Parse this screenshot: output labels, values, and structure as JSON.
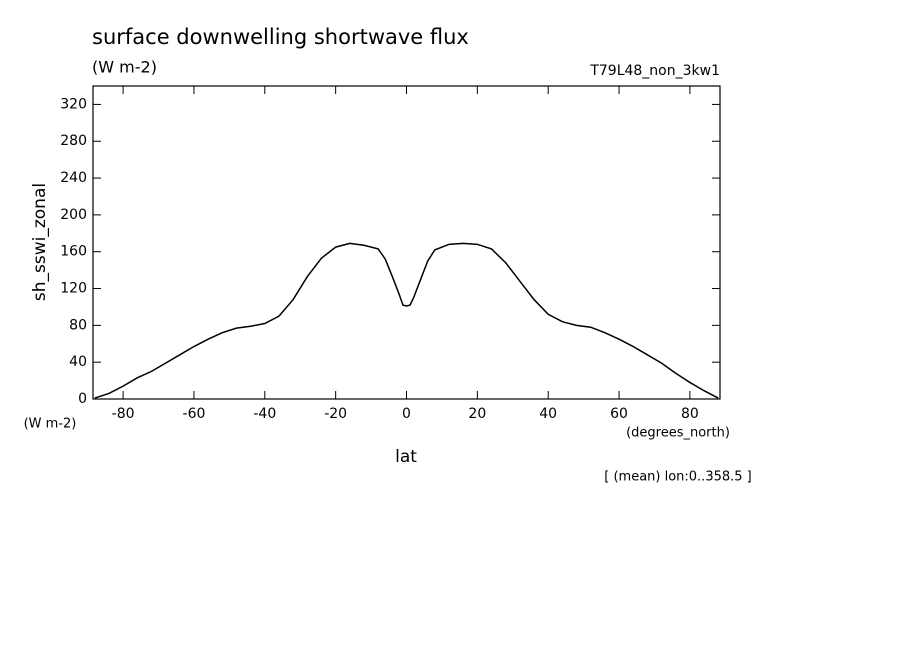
{
  "chart_data": {
    "type": "line",
    "title": "surface downwelling shortwave flux",
    "subtitle": "(W m-2)",
    "run_label": "T79L48_non_3kw1",
    "y_label": "sh_sswi_zonal",
    "y_units": "(W m-2)",
    "x_label": "lat",
    "x_units": "(degrees_north)",
    "note": "[ (mean) lon:0..358.5 ]",
    "color": "#000000",
    "x": [
      -88,
      -84,
      -80,
      -76,
      -72,
      -68,
      -64,
      -60,
      -56,
      -52,
      -48,
      -44,
      -40,
      -36,
      -32,
      -28,
      -24,
      -20,
      -16,
      -12,
      -8,
      -6,
      -4,
      -2,
      -1,
      0,
      1,
      2,
      4,
      6,
      8,
      12,
      16,
      20,
      24,
      28,
      32,
      36,
      40,
      44,
      48,
      52,
      56,
      60,
      64,
      68,
      72,
      76,
      80,
      84,
      88
    ],
    "values": [
      1,
      6,
      14,
      23,
      30,
      39,
      48,
      57,
      65,
      72,
      77,
      79,
      82,
      90,
      108,
      133,
      153,
      165,
      169,
      167,
      163,
      152,
      133,
      113,
      102,
      101,
      102,
      110,
      130,
      150,
      162,
      168,
      169,
      168,
      163,
      148,
      128,
      108,
      92,
      84,
      80,
      78,
      72,
      65,
      57,
      48,
      39,
      28,
      18,
      9,
      1
    ],
    "xlim": [
      -88.5,
      88.5
    ],
    "xticks": [
      -80,
      -60,
      -40,
      -20,
      0,
      20,
      40,
      60,
      80
    ],
    "ylim": [
      0,
      340
    ],
    "yticks": [
      0,
      40,
      80,
      120,
      160,
      200,
      240,
      280,
      320
    ]
  }
}
